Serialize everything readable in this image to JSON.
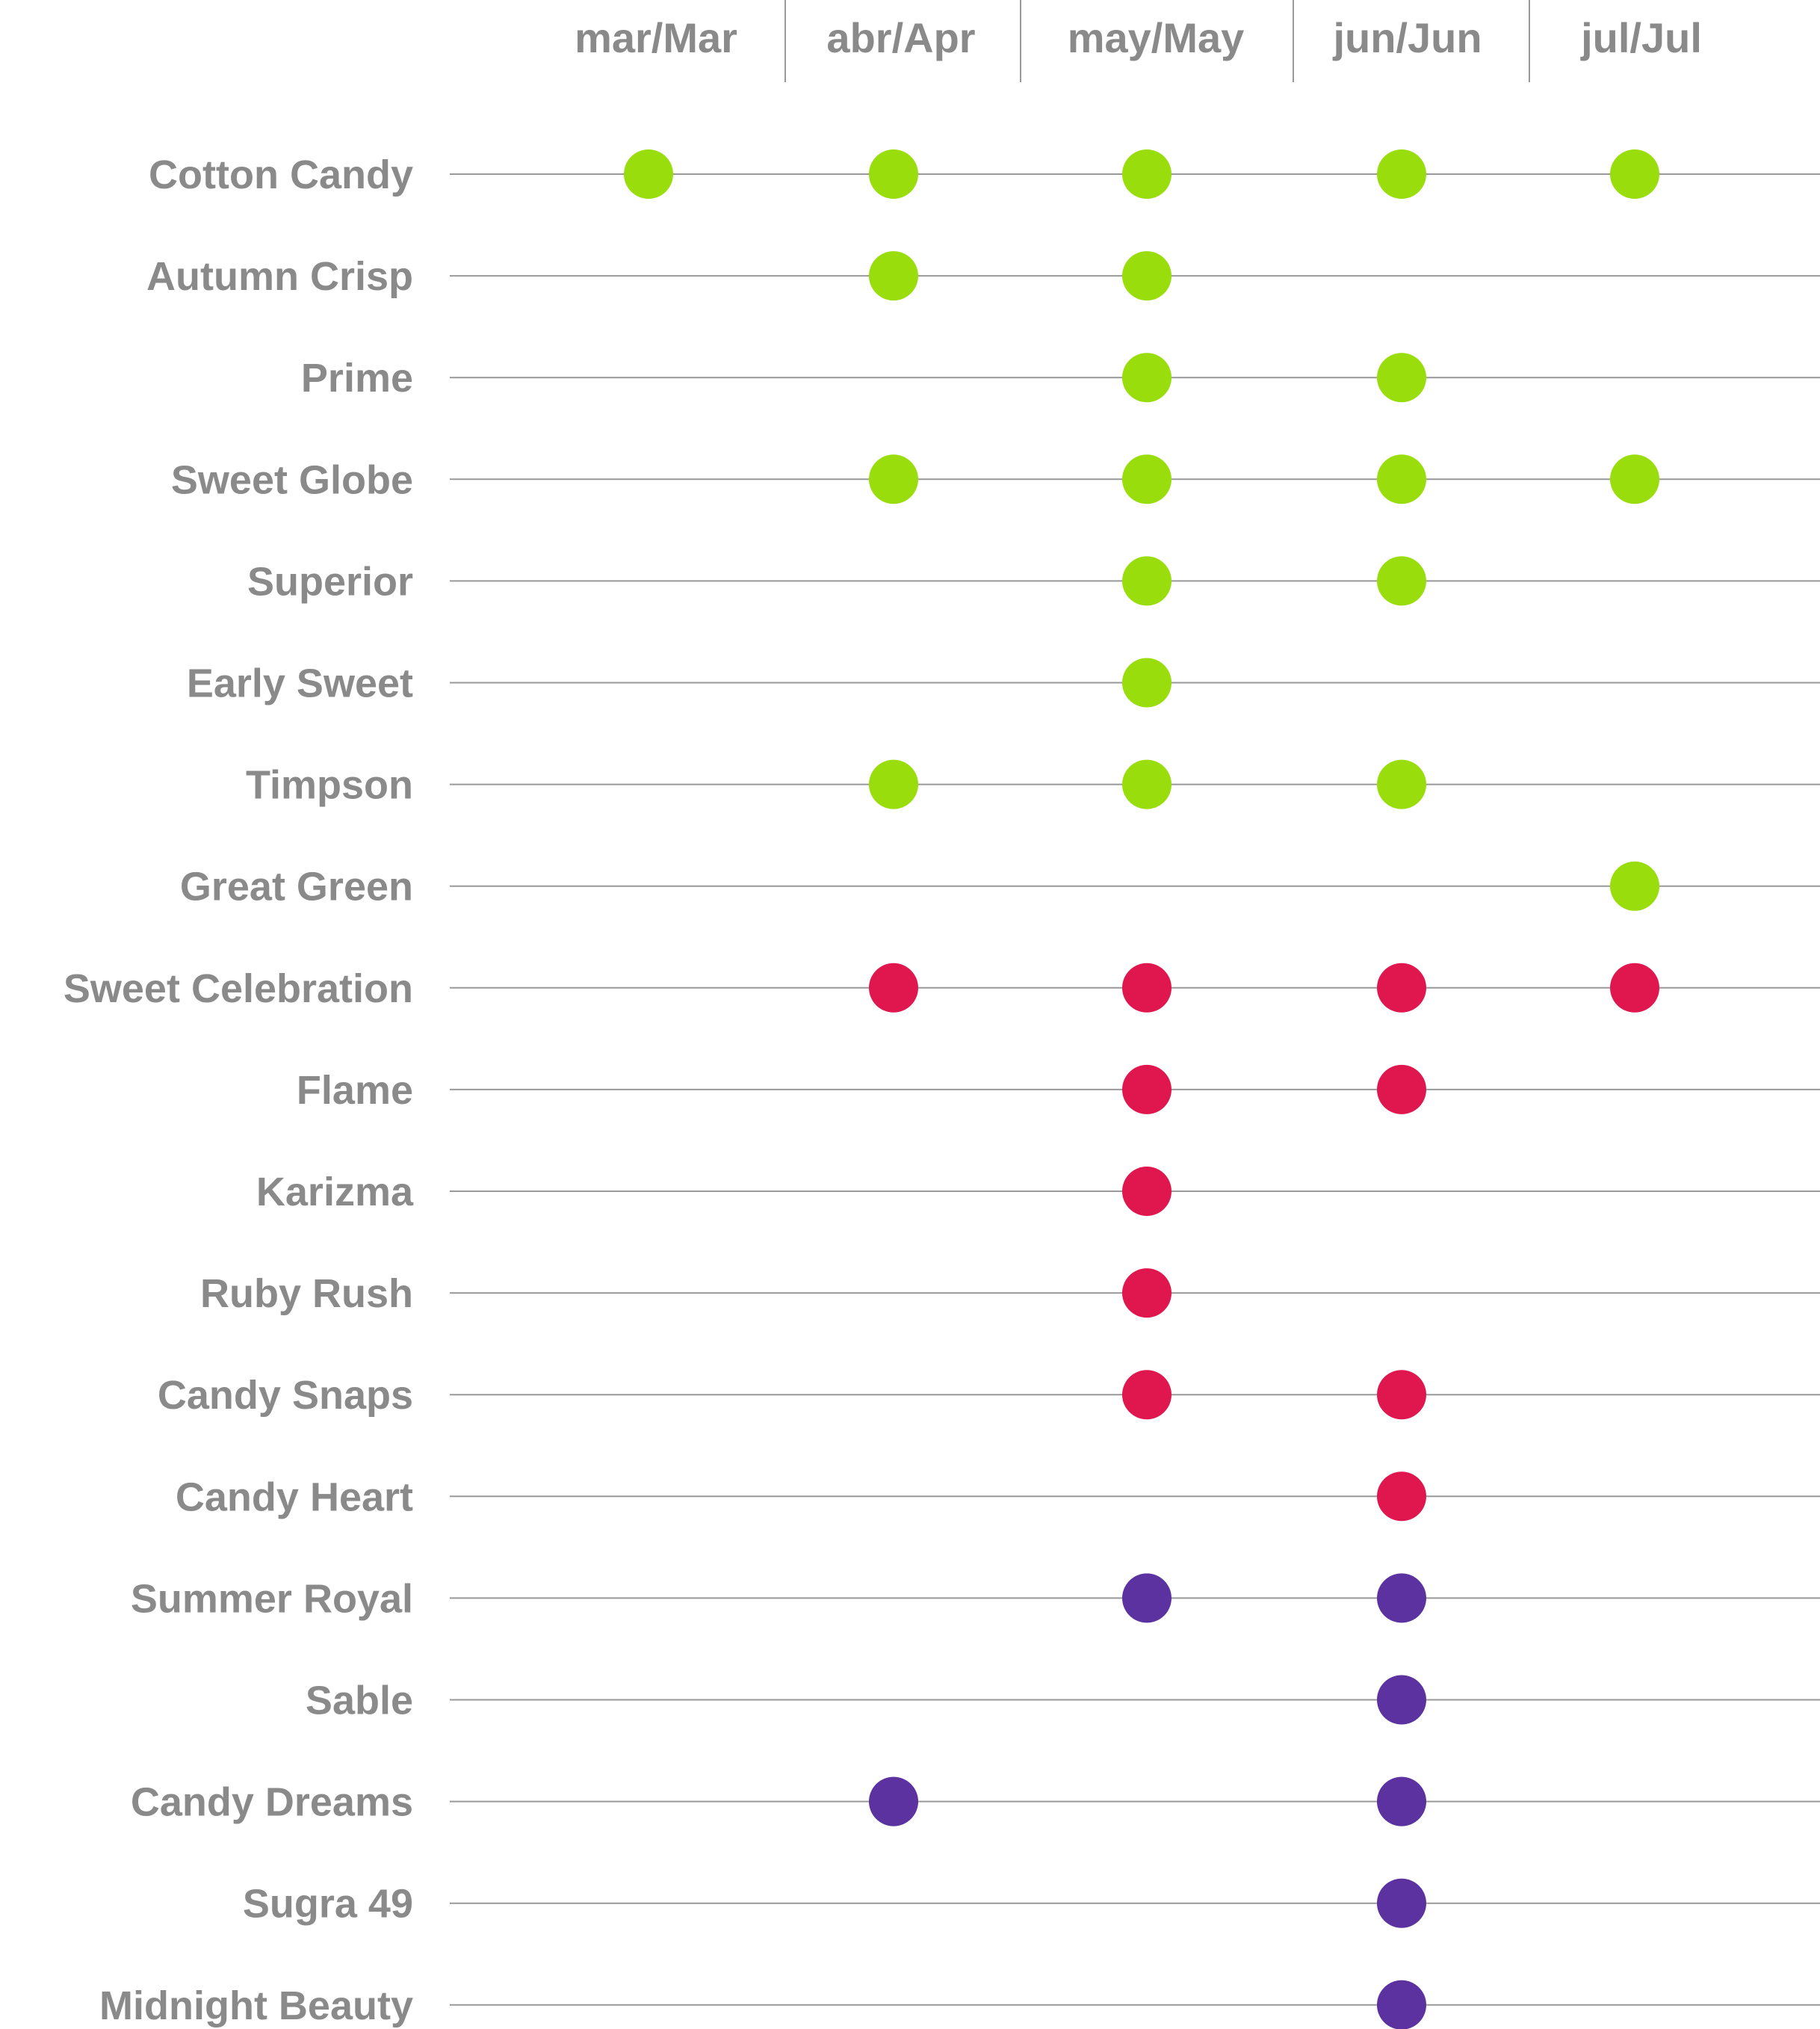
{
  "chart_data": {
    "type": "scatter",
    "title": "",
    "xlabel": "",
    "ylabel": "",
    "months": [
      "mar/Mar",
      "abr/Apr",
      "may/May",
      "jun/Jun",
      "jul/Jul"
    ],
    "group_colors": {
      "green": "#99dd0c",
      "red": "#e0174e",
      "purple": "#5c31a0"
    },
    "line_color": "#999999",
    "label_color": "#8a8a8a",
    "rows": [
      {
        "variety": "Cotton Candy",
        "group": "green",
        "months": [
          "mar/Mar",
          "abr/Apr",
          "may/May",
          "jun/Jun",
          "jul/Jul"
        ]
      },
      {
        "variety": "Autumn Crisp",
        "group": "green",
        "months": [
          "abr/Apr",
          "may/May"
        ]
      },
      {
        "variety": "Prime",
        "group": "green",
        "months": [
          "may/May",
          "jun/Jun"
        ]
      },
      {
        "variety": "Sweet Globe",
        "group": "green",
        "months": [
          "abr/Apr",
          "may/May",
          "jun/Jun",
          "jul/Jul"
        ]
      },
      {
        "variety": "Superior",
        "group": "green",
        "months": [
          "may/May",
          "jun/Jun"
        ]
      },
      {
        "variety": "Early Sweet",
        "group": "green",
        "months": [
          "may/May"
        ]
      },
      {
        "variety": "Timpson",
        "group": "green",
        "months": [
          "abr/Apr",
          "may/May",
          "jun/Jun"
        ]
      },
      {
        "variety": "Great Green",
        "group": "green",
        "months": [
          "jul/Jul"
        ]
      },
      {
        "variety": "Sweet Celebration",
        "group": "red",
        "months": [
          "abr/Apr",
          "may/May",
          "jun/Jun",
          "jul/Jul"
        ]
      },
      {
        "variety": "Flame",
        "group": "red",
        "months": [
          "may/May",
          "jun/Jun"
        ]
      },
      {
        "variety": "Karizma",
        "group": "red",
        "months": [
          "may/May"
        ]
      },
      {
        "variety": "Ruby Rush",
        "group": "red",
        "months": [
          "may/May"
        ]
      },
      {
        "variety": "Candy Snaps",
        "group": "red",
        "months": [
          "may/May",
          "jun/Jun"
        ]
      },
      {
        "variety": "Candy Heart",
        "group": "red",
        "months": [
          "jun/Jun"
        ]
      },
      {
        "variety": "Summer Royal",
        "group": "purple",
        "months": [
          "may/May",
          "jun/Jun"
        ]
      },
      {
        "variety": "Sable",
        "group": "purple",
        "months": [
          "jun/Jun"
        ]
      },
      {
        "variety": "Candy Dreams",
        "group": "purple",
        "months": [
          "abr/Apr",
          "jun/Jun"
        ]
      },
      {
        "variety": "Sugra 49",
        "group": "purple",
        "months": [
          "jun/Jun"
        ]
      },
      {
        "variety": "Midnight Beauty",
        "group": "purple",
        "months": [
          "jun/Jun"
        ]
      }
    ]
  }
}
